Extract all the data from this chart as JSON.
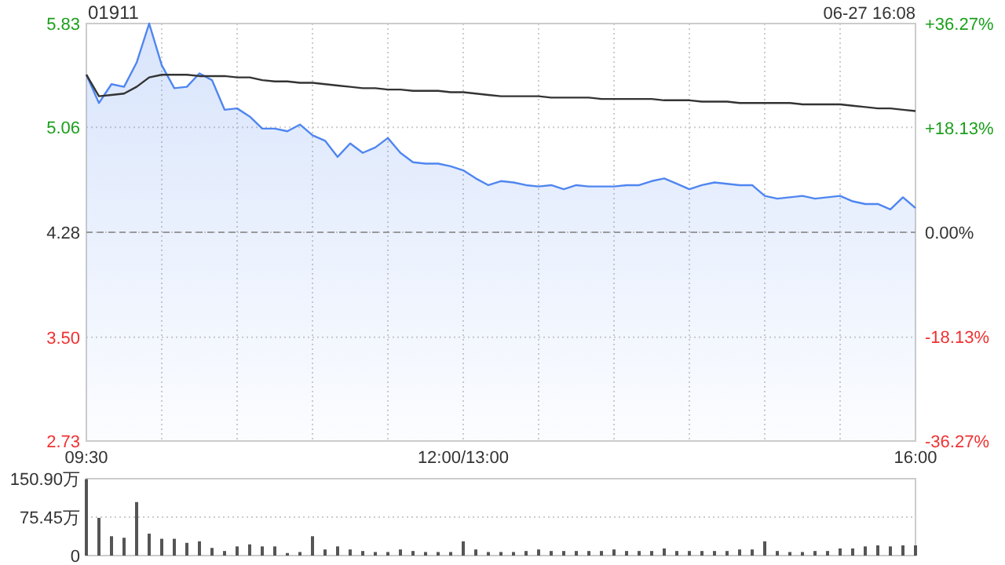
{
  "chart_data": [
    {
      "type": "area",
      "title": "01911",
      "annotations": [
        "06-27 16:08"
      ],
      "categories": [
        "09:30",
        null,
        null,
        null,
        null,
        null,
        null,
        null,
        null,
        null,
        null,
        null,
        null,
        null,
        null,
        null,
        null,
        null,
        null,
        null,
        null,
        null,
        null,
        null,
        null,
        null,
        null,
        null,
        null,
        null,
        "12:00/13:00",
        null,
        null,
        null,
        null,
        null,
        null,
        null,
        null,
        null,
        null,
        null,
        null,
        null,
        null,
        null,
        null,
        null,
        null,
        null,
        null,
        null,
        null,
        null,
        null,
        null,
        null,
        null,
        null,
        null,
        null,
        null,
        null,
        null,
        null,
        null,
        "16:00"
      ],
      "ylim": [
        2.73,
        5.83
      ],
      "yticks": [
        {
          "value": 2.73,
          "label": "2.73"
        },
        {
          "value": 3.5,
          "label": "3.50"
        },
        {
          "value": 4.28,
          "label": "4.28"
        },
        {
          "value": 5.06,
          "label": "5.06"
        },
        {
          "value": 5.83,
          "label": "5.83"
        }
      ],
      "y2lim": [
        -36.27,
        36.27
      ],
      "y2ticks": [
        {
          "value": -36.27,
          "label": "-36.27%"
        },
        {
          "value": -18.13,
          "label": "-18.13%"
        },
        {
          "value": 0,
          "label": "0.00%"
        },
        {
          "value": 18.13,
          "label": "+18.13%"
        },
        {
          "value": 36.27,
          "label": "+36.27%"
        }
      ],
      "grid": true,
      "ref_lines": [
        {
          "axis": "y",
          "value": 4.28,
          "color": "#999999",
          "line_style": "dashed"
        }
      ],
      "series": [
        {
          "color": "#4f86f0",
          "values": [
            5.45,
            5.24,
            5.38,
            5.36,
            5.54,
            5.83,
            5.52,
            5.35,
            5.36,
            5.46,
            5.41,
            5.19,
            5.2,
            5.14,
            5.05,
            5.05,
            5.03,
            5.08,
            5.0,
            4.96,
            4.84,
            4.94,
            4.87,
            4.91,
            4.98,
            4.87,
            4.8,
            4.79,
            4.79,
            4.77,
            4.74,
            4.68,
            4.63,
            4.66,
            4.65,
            4.63,
            4.62,
            4.63,
            4.6,
            4.63,
            4.62,
            4.62,
            4.62,
            4.63,
            4.63,
            4.66,
            4.68,
            4.64,
            4.6,
            4.63,
            4.65,
            4.64,
            4.63,
            4.63,
            4.55,
            4.53,
            4.54,
            4.55,
            4.53,
            4.54,
            4.55,
            4.51,
            4.49,
            4.49,
            4.45,
            4.54,
            4.46
          ]
        },
        {
          "type": "line",
          "color": "#333333",
          "values": [
            5.45,
            5.29,
            5.3,
            5.31,
            5.36,
            5.43,
            5.45,
            5.45,
            5.45,
            5.44,
            5.44,
            5.44,
            5.43,
            5.43,
            5.41,
            5.4,
            5.4,
            5.39,
            5.39,
            5.38,
            5.37,
            5.36,
            5.35,
            5.35,
            5.34,
            5.34,
            5.33,
            5.33,
            5.33,
            5.32,
            5.32,
            5.31,
            5.3,
            5.29,
            5.29,
            5.29,
            5.29,
            5.28,
            5.28,
            5.28,
            5.28,
            5.27,
            5.27,
            5.27,
            5.27,
            5.27,
            5.26,
            5.26,
            5.26,
            5.25,
            5.25,
            5.25,
            5.24,
            5.24,
            5.24,
            5.24,
            5.24,
            5.23,
            5.23,
            5.23,
            5.23,
            5.22,
            5.21,
            5.2,
            5.2,
            5.19,
            5.18
          ]
        }
      ]
    },
    {
      "type": "bar",
      "color": "#555555",
      "ylim": [
        0,
        150.9
      ],
      "categories": [
        null,
        null,
        null,
        null,
        null,
        null,
        null,
        null,
        null,
        null,
        null,
        null,
        null,
        null,
        null,
        null,
        null,
        null,
        null,
        null,
        null,
        null,
        null,
        null,
        null,
        null,
        null,
        null,
        null,
        null,
        null,
        null,
        null,
        null,
        null,
        null,
        null,
        null,
        null,
        null,
        null,
        null,
        null,
        null,
        null,
        null,
        null,
        null,
        null,
        null,
        null,
        null,
        null,
        null,
        null,
        null,
        null,
        null,
        null,
        null,
        null,
        null,
        null,
        null,
        null,
        null,
        null
      ],
      "yticks": [
        0,
        {
          "value": 75.45,
          "label": "75.45万"
        },
        {
          "value": 150.9,
          "label": "150.90万"
        }
      ],
      "grid": "y",
      "values": [
        150,
        74,
        38,
        35,
        105,
        43,
        33,
        33,
        25,
        28,
        15,
        9,
        18,
        22,
        18,
        18,
        5,
        7,
        38,
        12,
        18,
        12,
        9,
        7,
        7,
        12,
        9,
        7,
        7,
        7,
        28,
        12,
        7,
        7,
        7,
        9,
        12,
        9,
        9,
        9,
        9,
        9,
        12,
        9,
        9,
        9,
        14,
        9,
        9,
        9,
        9,
        9,
        12,
        12,
        28,
        9,
        7,
        7,
        9,
        9,
        14,
        14,
        18,
        20,
        18,
        20,
        20
      ]
    }
  ]
}
